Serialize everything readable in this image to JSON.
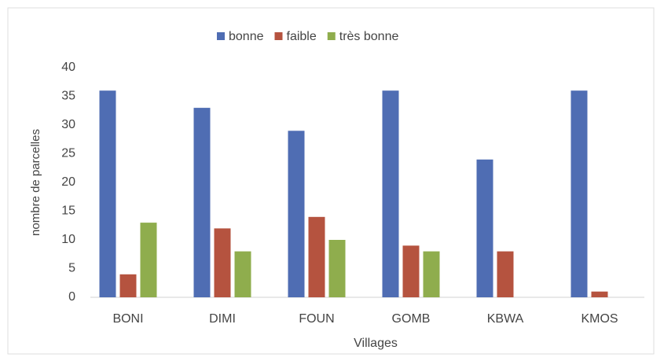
{
  "chart_data": {
    "type": "bar",
    "categories": [
      "BONI",
      "DIMI",
      "FOUN",
      "GOMB",
      "KBWA",
      "KMOS"
    ],
    "series": [
      {
        "name": "bonne",
        "color": "#4f6db3",
        "values": [
          36,
          33,
          29,
          36,
          24,
          36
        ]
      },
      {
        "name": "faible",
        "color": "#b5533f",
        "values": [
          4,
          12,
          14,
          9,
          8,
          1
        ]
      },
      {
        "name": "très bonne",
        "color": "#8fad4d",
        "values": [
          13,
          8,
          10,
          8,
          0,
          0
        ]
      }
    ],
    "xlabel": "Villages",
    "ylabel": "nombre de parcelles",
    "ylim": [
      0,
      40
    ],
    "yticks": [
      0,
      5,
      10,
      15,
      20,
      25,
      30,
      35,
      40
    ],
    "grid": false,
    "legend": "top"
  }
}
